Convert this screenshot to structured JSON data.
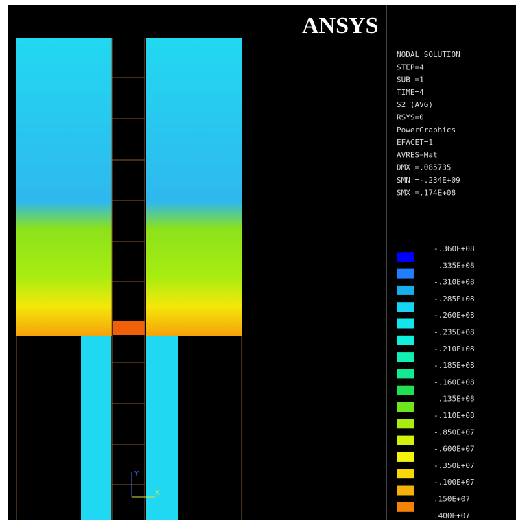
{
  "header": {
    "logo": "ANSYS"
  },
  "info": {
    "lines": [
      "NODAL SOLUTION",
      "STEP=4",
      "SUB =1",
      "TIME=4",
      "S2        (AVG)",
      "RSYS=0",
      "PowerGraphics",
      "EFACET=1",
      "AVRES=Mat",
      "DMX =.085735",
      "SMN =-.234E+09",
      "SMX =.174E+08"
    ]
  },
  "legend": {
    "levels": [
      "-.360E+08",
      "-.335E+08",
      "-.310E+08",
      "-.285E+08",
      "-.260E+08",
      "-.235E+08",
      "-.210E+08",
      "-.185E+08",
      "-.160E+08",
      "-.135E+08",
      "-.110E+08",
      "-.850E+07",
      "-.600E+07",
      "-.350E+07",
      "-.100E+07",
      ".150E+07",
      ".400E+07"
    ],
    "colors": [
      "#0000ff",
      "#1f7fff",
      "#17aef0",
      "#16d4f4",
      "#12e6ec",
      "#10f0dc",
      "#12eeb4",
      "#14e890",
      "#1ee254",
      "#6ee61e",
      "#a8ec12",
      "#d2f20e",
      "#f4f40a",
      "#f6d80a",
      "#f8b00a",
      "#f68208",
      "#f00000"
    ]
  },
  "triad": {
    "y": "Y",
    "x": "X"
  }
}
